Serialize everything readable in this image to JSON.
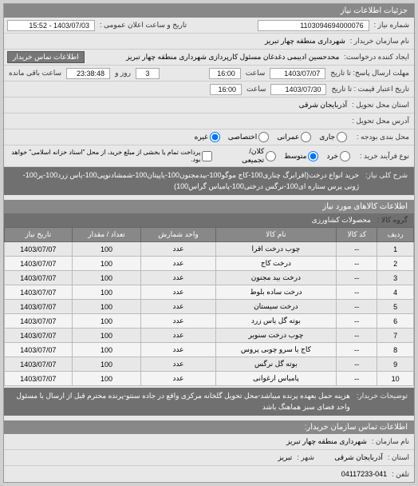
{
  "header": {
    "title": "جزئیات اطلاعات نیاز"
  },
  "top": {
    "request_no_label": "شماره نیاز :",
    "request_no": "1103094694000076",
    "announce_label": "تاریخ و ساعت اعلان عمومی :",
    "announce_date": "1403/07/03 - 15:52",
    "buyer_name_label": "نام سازمان خریدار :",
    "buyer_name": "شهرداری منطقه چهار تبریز",
    "requester_label": "ایجاد کننده درخواست:",
    "requester": "محدحسین ادیبمی دغدغان مسئول کارپردازی شهرداری منطقه چهار تبریز",
    "contact_btn": "اطلاعات تماس خریدار",
    "deadline_label": "مهلت ارسال پاسخ: تا تاریخ",
    "deadline_date": "1403/07/07",
    "time_label": "ساعت",
    "deadline_time": "16:00",
    "days_left": "3",
    "days_label": "روز و",
    "time_left": "23:38:48",
    "time_remain_label": "ساعت باقی مانده",
    "validity_label": "تاریخ اعتبار قیمت : تا تاریخ",
    "validity_date": "1403/07/30",
    "validity_time": "16:00",
    "delivery_state_label": "استان محل تحویل :",
    "delivery_state": "آذربایجان شرقی",
    "delivery_address_label": "آدرس محل تحویل :",
    "budget_label": "محل بندی بودجه :",
    "r_running": "جاری",
    "r_civil": "عمرانی",
    "r_special": "اختصاصی",
    "r_other": "غیره",
    "resource_label": "نوع فرآیند خرید :",
    "r_small": "خرد",
    "r_medium": "متوسط",
    "r_large": "کلان/تجمیعی",
    "resource_note": "پرداخت تمام یا بخشی از مبلغ خرید، از محل \"اسناد خزانه اسلامی\" خواهد بود.",
    "desc_label": "شرح کلی نیاز:",
    "desc": "خرید انواع درخت(اقرابرگ چناری100-کاج موگو100-بیدمجنون100-یاپیتان100-شمشادنوپی100-یاس زرد100-پر100-ژونی پرس ستاره ای100-نرگس درختی100-پامیاس گراس100)"
  },
  "products_title": "اطلاعات کالاهای مورد نیاز",
  "goods_group_label": "گروه کالا :",
  "goods_group": "محصولات کشاورزی",
  "table": {
    "columns": [
      "ردیف",
      "کد کالا",
      "نام کالا",
      "واحد شمارش",
      "تعداد / مقدار",
      "تاریخ نیاز"
    ],
    "rows": [
      [
        "1",
        "--",
        "چوب درخت اقرا",
        "عدد",
        "100",
        "1403/07/07"
      ],
      [
        "2",
        "--",
        "درخت کاج",
        "عدد",
        "100",
        "1403/07/07"
      ],
      [
        "3",
        "--",
        "درخت بید مجنون",
        "عدد",
        "100",
        "1403/07/07"
      ],
      [
        "4",
        "--",
        "درخت ساده بلوط",
        "عدد",
        "100",
        "1403/07/07"
      ],
      [
        "5",
        "--",
        "درخت سیستان",
        "عدد",
        "100",
        "1403/07/07"
      ],
      [
        "6",
        "--",
        "بوته گل یاس زرد",
        "عدد",
        "100",
        "1403/07/07"
      ],
      [
        "7",
        "--",
        "چوب درخت سنوبر",
        "عدد",
        "100",
        "1403/07/07"
      ],
      [
        "8",
        "--",
        "کاج یا سرو چوبی پروس",
        "عدد",
        "100",
        "1403/07/07"
      ],
      [
        "9",
        "--",
        "بوته گل نرگس",
        "عدد",
        "100",
        "1403/07/07"
      ],
      [
        "10",
        "--",
        "پامیاس ارغوانی",
        "عدد",
        "100",
        "1403/07/07"
      ]
    ]
  },
  "buyer_notes_label": "توضیحات خریدار:",
  "buyer_notes": "هزینه حمل بعهده پرنده میباشد-محل تحویل گلخانه مرکزی واقع در جاده سنتو-پرنده محترم قبل از ارسال با مسئول واحد فضای سبز هماهنگ باشد",
  "footer": {
    "org_contact_title": "اطلاعات تماس سازمان خریدار:",
    "org_name_label": "نام سازمان :",
    "org_name": "شهرداری منطقه چهار تبریز",
    "state_label": "استان :",
    "state": "آذربایجان شرقی",
    "city_label": "شهر :",
    "city": "تبریز",
    "tel_label": "تلفن :",
    "tel": "04117233-041"
  }
}
